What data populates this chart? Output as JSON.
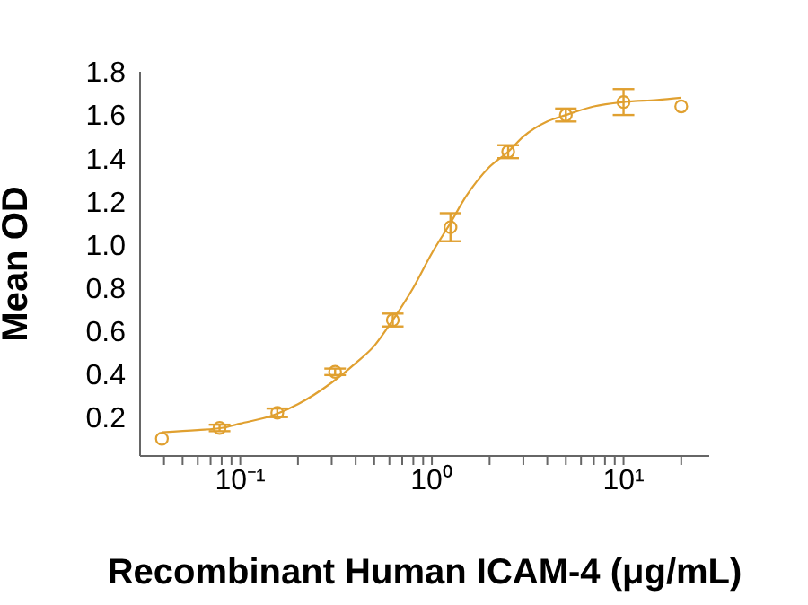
{
  "chart_data": {
    "type": "scatter",
    "xlabel": "Recombinant Human ICAM-4 (μg/mL)",
    "ylabel": "Mean OD",
    "log": "x",
    "xlim": [
      0.03,
      28
    ],
    "xticks": [
      {
        "value": 0.04,
        "label": null
      },
      {
        "value": 0.05,
        "label": null
      },
      {
        "value": 0.06,
        "label": null
      },
      {
        "value": 0.07,
        "label": null
      },
      {
        "value": 0.08,
        "label": null
      },
      {
        "value": 0.09,
        "label": null
      },
      {
        "value": 0.1,
        "label": "10⁻¹"
      },
      {
        "value": 0.2,
        "label": null
      },
      {
        "value": 0.3,
        "label": null
      },
      {
        "value": 0.4,
        "label": null
      },
      {
        "value": 0.5,
        "label": null
      },
      {
        "value": 0.6,
        "label": null
      },
      {
        "value": 0.7,
        "label": null
      },
      {
        "value": 0.8,
        "label": null
      },
      {
        "value": 0.9,
        "label": null
      },
      {
        "value": 1,
        "label": "10⁰"
      },
      {
        "value": 2,
        "label": null
      },
      {
        "value": 3,
        "label": null
      },
      {
        "value": 4,
        "label": null
      },
      {
        "value": 5,
        "label": null
      },
      {
        "value": 6,
        "label": null
      },
      {
        "value": 7,
        "label": null
      },
      {
        "value": 8,
        "label": null
      },
      {
        "value": 9,
        "label": null
      },
      {
        "value": 10,
        "label": "10¹"
      },
      {
        "value": 20,
        "label": null
      }
    ],
    "ylim": [
      0.02,
      1.8
    ],
    "yticks": [
      {
        "value": 0.2,
        "label": "0.2"
      },
      {
        "value": 0.4,
        "label": "0.4"
      },
      {
        "value": 0.6,
        "label": "0.6"
      },
      {
        "value": 0.8,
        "label": "0.8"
      },
      {
        "value": 1,
        "label": "1.0"
      },
      {
        "value": 1.2,
        "label": "1.2"
      },
      {
        "value": 1.4,
        "label": "1.4"
      },
      {
        "value": 1.6,
        "label": "1.6"
      },
      {
        "value": 1.8,
        "label": "1.8"
      }
    ],
    "series": [
      {
        "color": "#e0a030",
        "marker": "circle",
        "x": [
          0.039,
          0.078,
          0.156,
          0.3125,
          0.625,
          1.25,
          2.5,
          5,
          10,
          20
        ],
        "values": [
          0.1,
          0.15,
          0.22,
          0.41,
          0.65,
          1.08,
          1.43,
          1.6,
          1.66,
          1.64
        ],
        "errors": [
          null,
          0.015,
          0.02,
          0.015,
          0.03,
          0.065,
          0.03,
          0.03,
          0.06,
          null
        ]
      },
      {
        "type": "line",
        "color": "#e0a030",
        "marker": "none",
        "line_style": "solid",
        "x": [
          0.039,
          0.06,
          0.08,
          0.1,
          0.15,
          0.2,
          0.3,
          0.4,
          0.5,
          0.625,
          0.8,
          1,
          1.25,
          1.5,
          2,
          2.5,
          3,
          4,
          5,
          7,
          10,
          15,
          20
        ],
        "values": [
          0.13,
          0.14,
          0.15,
          0.17,
          0.21,
          0.26,
          0.36,
          0.45,
          0.53,
          0.65,
          0.8,
          0.96,
          1.1,
          1.22,
          1.36,
          1.43,
          1.5,
          1.57,
          1.6,
          1.64,
          1.66,
          1.67,
          1.68
        ]
      }
    ]
  }
}
